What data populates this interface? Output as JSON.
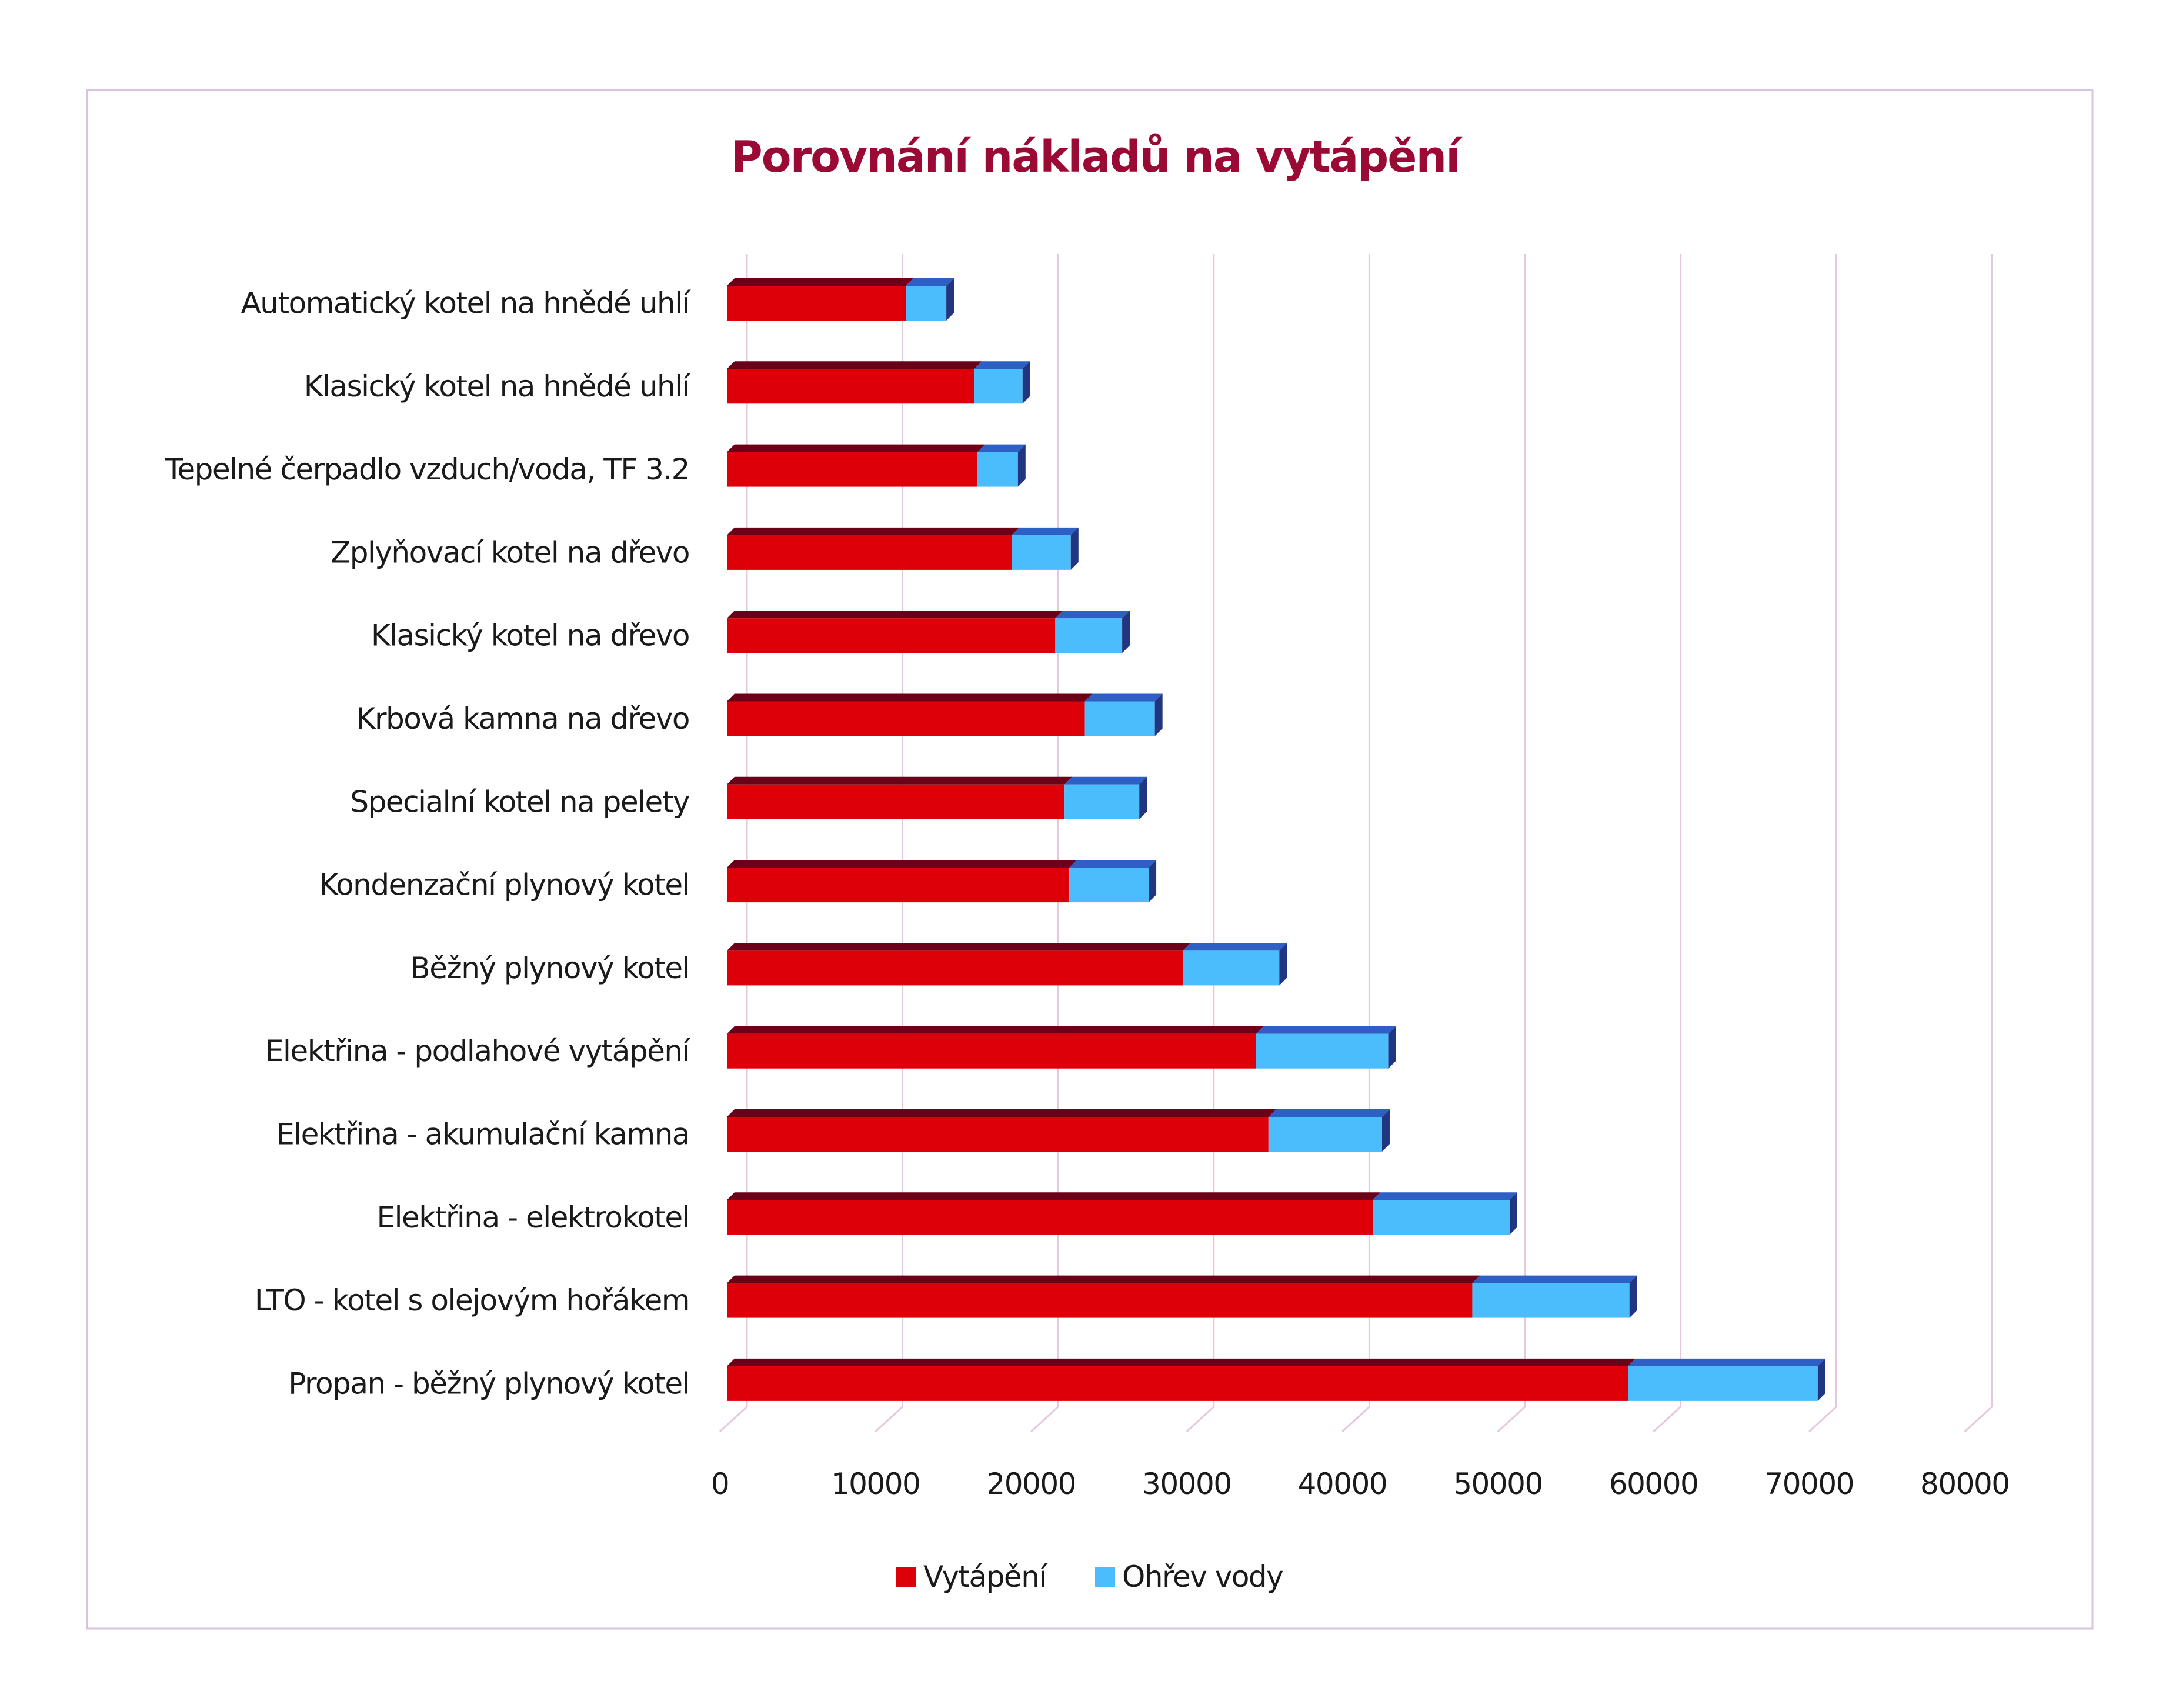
{
  "chart_data": {
    "type": "bar",
    "orientation": "horizontal",
    "stacked": true,
    "style": "3d",
    "title": "Porovnání nákladů na vytápění",
    "xlabel": "",
    "ylabel": "",
    "xlim": [
      0,
      80000
    ],
    "ticks": [
      "0",
      "10000",
      "20000",
      "30000",
      "40000",
      "50000",
      "60000",
      "70000",
      "80000"
    ],
    "tick_values": [
      0,
      10000,
      20000,
      30000,
      40000,
      50000,
      60000,
      70000,
      80000
    ],
    "grid": true,
    "legend_position": "bottom",
    "categories": [
      "Automatický kotel na hnědé uhlí",
      "Klasický kotel na hnědé uhlí",
      "Tepelné čerpadlo vzduch/voda, TF 3.2",
      "Zplyňovací kotel na dřevo",
      "Klasický kotel na dřevo",
      "Krbová kamna na dřevo",
      "Specialní kotel na pelety",
      "Kondenzační plynový kotel",
      "Běžný plynový kotel",
      "Elektřina - podlahové vytápění",
      "Elektřina - akumulační kamna",
      "Elektřina - elektrokotel",
      "LTO - kotel s olejovým hořákem",
      "Propan - běžný plynový kotel"
    ],
    "series": [
      {
        "name": "Vytápění",
        "color": "#de0009",
        "top_color": "#6b0019",
        "values": [
          11500,
          15900,
          16100,
          18300,
          21100,
          23000,
          21700,
          22000,
          29300,
          34000,
          34800,
          41500,
          47900,
          57900
        ]
      },
      {
        "name": "Ohřev vody",
        "color": "#4cbdfc",
        "top_color": "#2d5fc4",
        "side_color": "#223580",
        "values": [
          2600,
          3100,
          2600,
          3800,
          4300,
          4500,
          4800,
          5100,
          6200,
          8500,
          7300,
          8800,
          10100,
          12200
        ]
      }
    ]
  }
}
